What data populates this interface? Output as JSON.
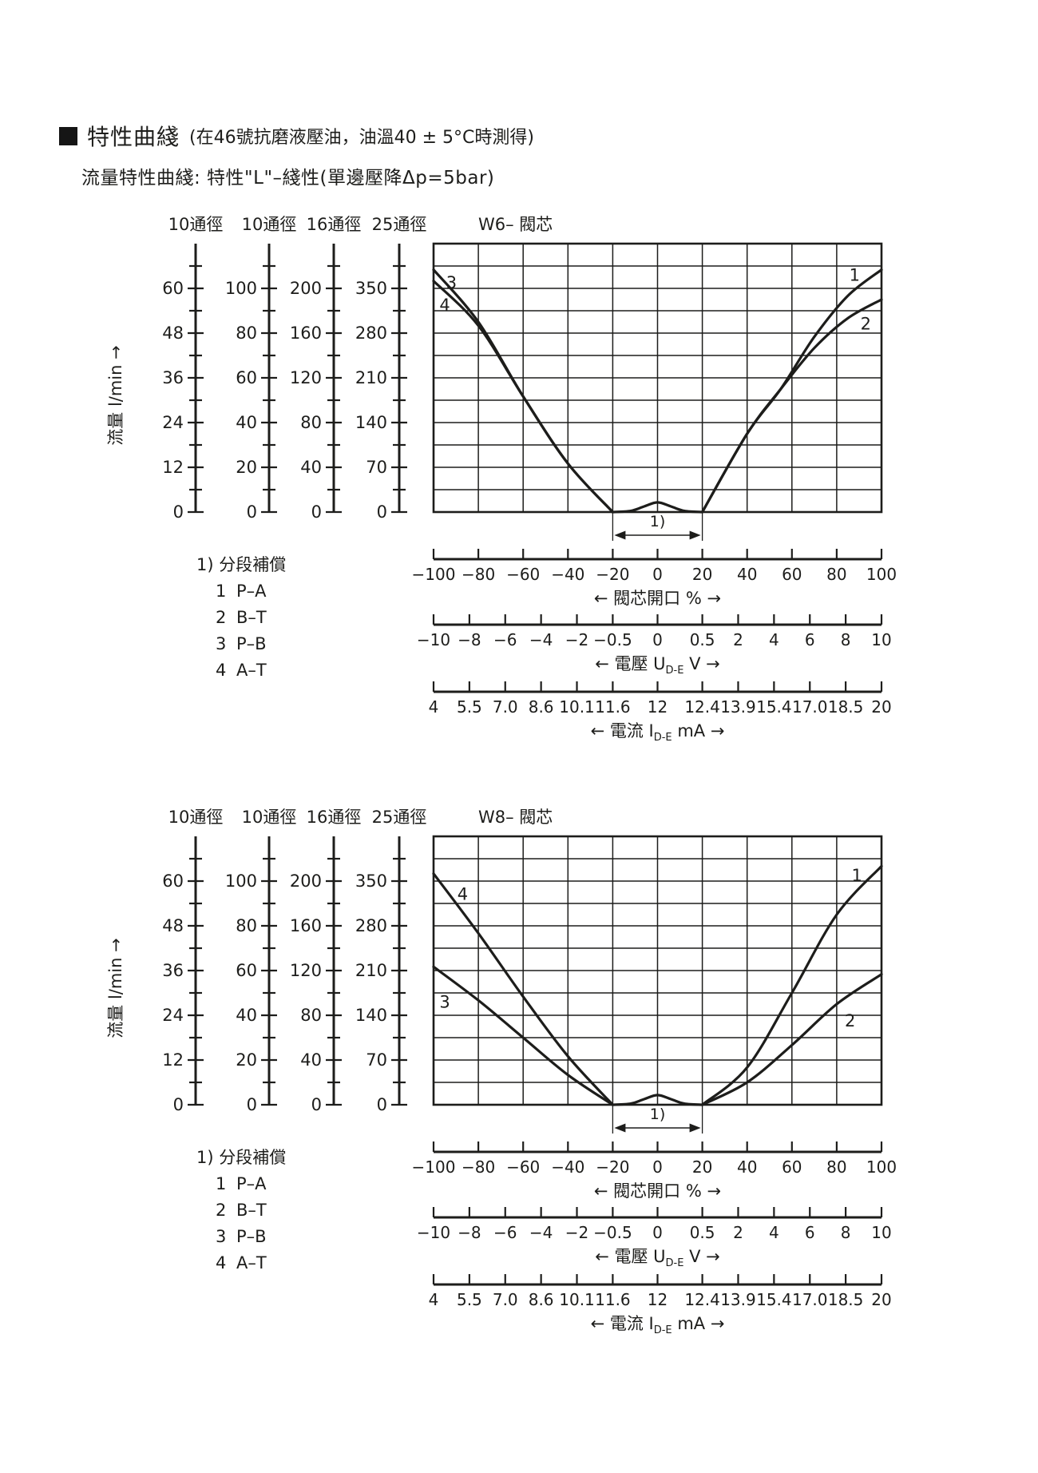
{
  "header": {
    "title": "特性曲綫",
    "note": "(在46號抗磨液壓油，油溫40 ± 5°C時測得)",
    "subtitle": "流量特性曲綫: 特性\"L\"–綫性(單邊壓降Δp=5bar)"
  },
  "colors": {
    "ink": "#1d1d1b",
    "background": "#ffffff"
  },
  "flow_axis_label": "流量 l/min →",
  "y_scales": [
    {
      "header": "10通徑",
      "tick_labels": [
        "0",
        "12",
        "24",
        "36",
        "48",
        "60"
      ]
    },
    {
      "header": "10通徑",
      "tick_labels": [
        "0",
        "20",
        "40",
        "60",
        "80",
        "100"
      ]
    },
    {
      "header": "16通徑",
      "tick_labels": [
        "0",
        "40",
        "80",
        "120",
        "160",
        "200"
      ]
    },
    {
      "header": "25通徑",
      "tick_labels": [
        "0",
        "70",
        "140",
        "210",
        "280",
        "350"
      ]
    }
  ],
  "x_axes": [
    {
      "name": "spool-opening",
      "tick_labels": [
        "−100",
        "−80",
        "−60",
        "−40",
        "−20",
        "0",
        "20",
        "40",
        "60",
        "80",
        "100"
      ],
      "caption_pre": "← 閥芯開口 % →",
      "caption_sub": "",
      "caption_post": ""
    },
    {
      "name": "voltage",
      "tick_labels": [
        "−10",
        "−8",
        "−6",
        "−4",
        "−2",
        "−0.5",
        "0",
        "0.5",
        "2",
        "4",
        "6",
        "8",
        "10"
      ],
      "caption_pre": "← 電壓 U",
      "caption_sub": "D-E",
      "caption_post": " V →"
    },
    {
      "name": "current",
      "tick_labels": [
        "4",
        "5.5",
        "7.0",
        "8.6",
        "10.1",
        "11.6",
        "12",
        "12.4",
        "13.9",
        "15.4",
        "17.0",
        "18.5",
        "20"
      ],
      "caption_pre": "← 電流 I",
      "caption_sub": "D-E",
      "caption_post": " mA →"
    }
  ],
  "legend": {
    "title": "1) 分段補償",
    "items": [
      "1 P–A",
      "2 B–T",
      "3 P–B",
      "4 A–T"
    ]
  },
  "deadband_label": "1)",
  "chart_data": [
    {
      "type": "line",
      "title": "W6– 閥芯",
      "xlabel": "閥芯開口 %",
      "ylabel": "流量 l/min (10通徑 scale 0–60; 10通徑 0–100; 16通徑 0–200; 25通徑 0–350)",
      "xlim": [
        -100,
        100
      ],
      "ylim": [
        0,
        72
      ],
      "deadband_span": [
        -20,
        20
      ],
      "series": [
        {
          "label": "1",
          "points": [
            [
              20,
              0
            ],
            [
              40,
              21
            ],
            [
              55,
              33
            ],
            [
              70,
              47
            ],
            [
              85,
              58
            ],
            [
              100,
              65
            ]
          ],
          "label_pos": [
            88,
            62
          ]
        },
        {
          "label": "2",
          "points": [
            [
              20,
              0
            ],
            [
              40,
              21
            ],
            [
              55,
              33
            ],
            [
              70,
              44
            ],
            [
              85,
              52
            ],
            [
              100,
              57
            ]
          ],
          "label_pos": [
            93,
            49
          ]
        },
        {
          "label": "3",
          "points": [
            [
              -100,
              65
            ],
            [
              -80,
              51
            ],
            [
              -60,
              31
            ],
            [
              -40,
              13
            ],
            [
              -20,
              0
            ]
          ],
          "label_pos": [
            -92,
            60
          ]
        },
        {
          "label": "4",
          "points": [
            [
              -100,
              62
            ],
            [
              -80,
              50
            ],
            [
              -60,
              31
            ],
            [
              -40,
              13
            ],
            [
              -20,
              0
            ]
          ],
          "label_pos": [
            -95,
            54
          ]
        },
        {
          "label": "deadband",
          "points": [
            [
              -20,
              0
            ],
            [
              -12,
              0.3
            ],
            [
              -6,
              1.5
            ],
            [
              0,
              2.6
            ],
            [
              6,
              1.5
            ],
            [
              12,
              0.3
            ],
            [
              20,
              0
            ]
          ],
          "label_pos": null
        }
      ]
    },
    {
      "type": "line",
      "title": "W8– 閥芯",
      "xlabel": "閥芯開口 %",
      "ylabel": "流量 l/min (10通徑 scale 0–60; 10通徑 0–100; 16通徑 0–200; 25通徑 0–350)",
      "xlim": [
        -100,
        100
      ],
      "ylim": [
        0,
        72
      ],
      "deadband_span": [
        -20,
        20
      ],
      "series": [
        {
          "label": "1",
          "points": [
            [
              20,
              0
            ],
            [
              40,
              10
            ],
            [
              60,
              30
            ],
            [
              80,
              51
            ],
            [
              100,
              64
            ]
          ],
          "label_pos": [
            89,
            60
          ]
        },
        {
          "label": "2",
          "points": [
            [
              20,
              0
            ],
            [
              40,
              6
            ],
            [
              60,
              16
            ],
            [
              80,
              27
            ],
            [
              100,
              35
            ]
          ],
          "label_pos": [
            86,
            21
          ]
        },
        {
          "label": "3",
          "points": [
            [
              -100,
              37
            ],
            [
              -80,
              28
            ],
            [
              -60,
              18
            ],
            [
              -40,
              8
            ],
            [
              -20,
              0
            ]
          ],
          "label_pos": [
            -95,
            26
          ]
        },
        {
          "label": "4",
          "points": [
            [
              -100,
              62
            ],
            [
              -80,
              46
            ],
            [
              -60,
              29
            ],
            [
              -40,
              13
            ],
            [
              -20,
              0
            ]
          ],
          "label_pos": [
            -87,
            55
          ]
        },
        {
          "label": "deadband",
          "points": [
            [
              -20,
              0
            ],
            [
              -12,
              0.3
            ],
            [
              -6,
              1.5
            ],
            [
              0,
              2.6
            ],
            [
              6,
              1.5
            ],
            [
              12,
              0.3
            ],
            [
              20,
              0
            ]
          ],
          "label_pos": null
        }
      ]
    }
  ]
}
